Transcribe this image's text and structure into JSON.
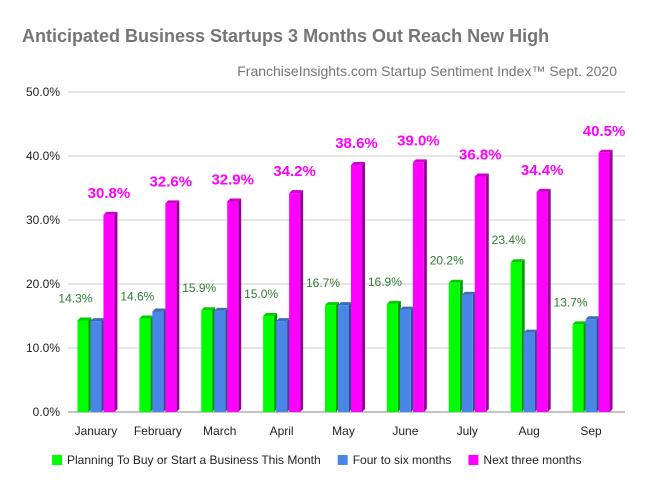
{
  "chart_data": {
    "type": "bar",
    "title": "Anticipated Business Startups 3 Months Out Reach New High",
    "subtitle": "FranchiseInsights.com Startup Sentiment Index™ Sept. 2020",
    "categories": [
      "January",
      "February",
      "March",
      "April",
      "May",
      "June",
      "July",
      "Aug",
      "Sep"
    ],
    "ylim": [
      0,
      50
    ],
    "yticks": [
      0,
      10,
      20,
      30,
      40,
      50
    ],
    "ytick_labels": [
      "0.0%",
      "10.0%",
      "20.0%",
      "30.0%",
      "40.0%",
      "50.0%"
    ],
    "grid": true,
    "legend_position": "bottom",
    "series": [
      {
        "name": "Planning To Buy or Start a Business This Month",
        "color": "#00ff00",
        "values": [
          14.3,
          14.6,
          15.9,
          15.0,
          16.7,
          16.9,
          20.2,
          23.4,
          13.7
        ],
        "labels": [
          "14.3%",
          "14.6%",
          "15.9%",
          "15.0%",
          "16.7%",
          "16.9%",
          "20.2%",
          "23.4%",
          "13.7%"
        ]
      },
      {
        "name": "Four to six months",
        "color": "#4a86e8",
        "values": [
          14.2,
          15.7,
          15.8,
          14.2,
          16.7,
          16.0,
          18.3,
          12.4,
          14.5
        ]
      },
      {
        "name": "Next three months",
        "color": "#ff00ff",
        "values": [
          30.8,
          32.6,
          32.9,
          34.2,
          38.6,
          39.0,
          36.8,
          34.4,
          40.5
        ],
        "labels": [
          "30.8%",
          "32.6%",
          "32.9%",
          "34.2%",
          "38.6%",
          "39.0%",
          "36.8%",
          "34.4%",
          "40.5%"
        ]
      }
    ]
  }
}
